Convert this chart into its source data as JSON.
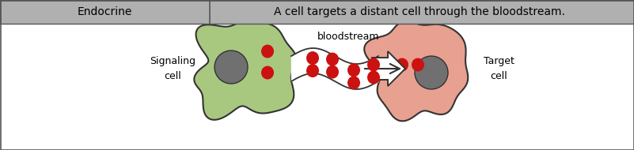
{
  "fig_width": 8.01,
  "fig_height": 1.9,
  "dpi": 100,
  "header_bg": "#b0b0b0",
  "header_left_text": "Endocrine",
  "header_right_text": "A cell targets a distant cell through the bloodstream.",
  "body_bg": "#ffffff",
  "cell_left_color": "#a8c880",
  "cell_right_color": "#e8a090",
  "nucleus_color": "#707070",
  "dot_color": "#cc1111",
  "label_left": "Signaling\ncell",
  "label_right": "Target\ncell",
  "label_bottom": "bloodstream",
  "font_size_header": 10,
  "font_size_label": 9,
  "font_size_bottom": 9
}
